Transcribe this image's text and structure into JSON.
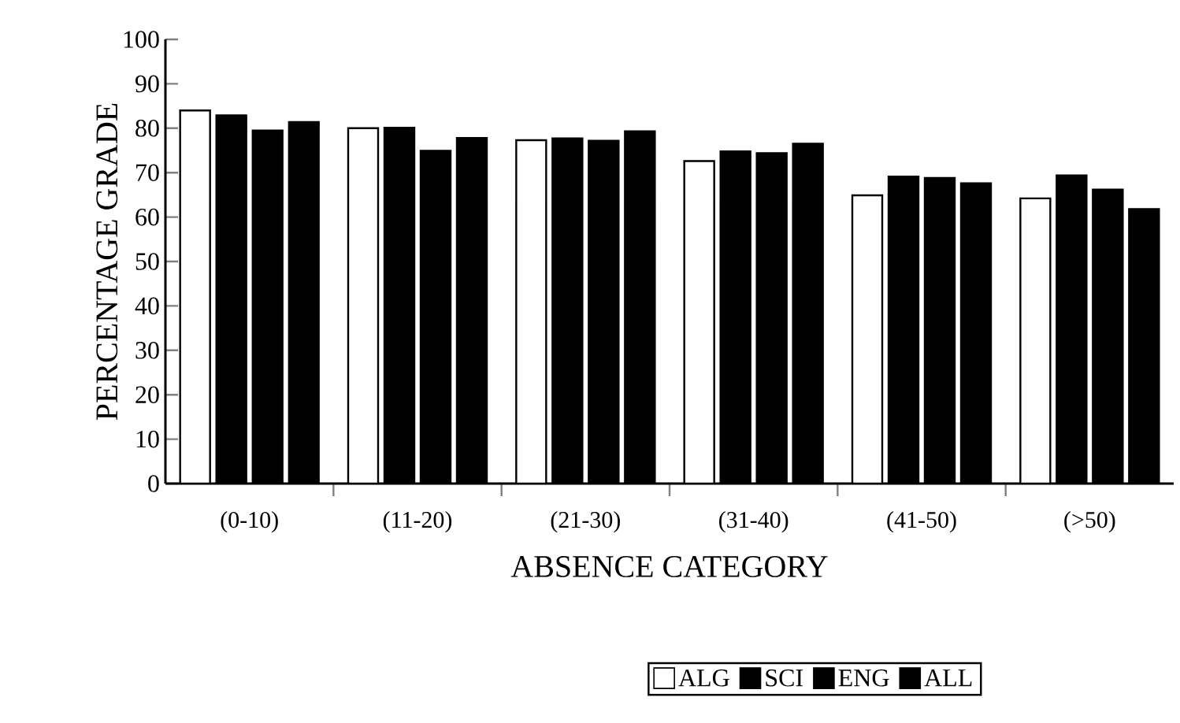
{
  "chart_data": {
    "type": "bar",
    "xlabel": "ABSENCE CATEGORY",
    "ylabel": "PERCENTAGE GRADE",
    "categories": [
      "(0-10)",
      "(11-20)",
      "(21-30)",
      "(31-40)",
      "(41-50)",
      "(>50)"
    ],
    "series": [
      {
        "name": "ALG",
        "color": "#ffffff",
        "values": [
          84,
          80,
          77.3,
          72.6,
          64.9,
          64.2
        ]
      },
      {
        "name": "SCI",
        "color": "#000000",
        "values": [
          82.9,
          80.1,
          77.7,
          74.8,
          69.1,
          69.4
        ]
      },
      {
        "name": "ENG",
        "color": "#000000",
        "values": [
          79.5,
          74.9,
          77.2,
          74.4,
          68.8,
          66.2
        ]
      },
      {
        "name": "ALL",
        "color": "#000000",
        "values": [
          81.4,
          77.8,
          79.3,
          76.5,
          67.6,
          61.8
        ]
      }
    ],
    "ylim": [
      0,
      100
    ],
    "yticks": [
      0,
      10,
      20,
      30,
      40,
      50,
      60,
      70,
      80,
      90,
      100
    ],
    "legend": "bottom"
  }
}
